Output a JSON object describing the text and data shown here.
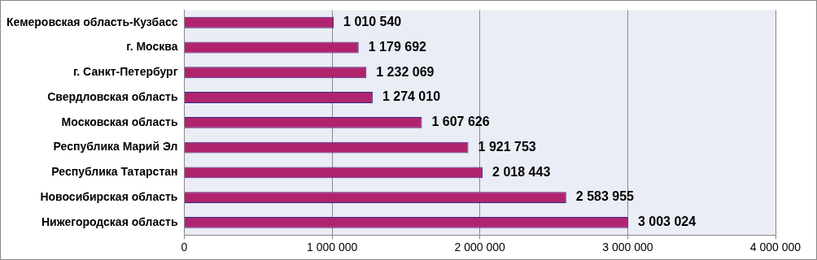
{
  "chart_data": {
    "type": "bar",
    "orientation": "horizontal",
    "categories": [
      "Кемеровская область-Кузбасс",
      "г. Москва",
      "г. Санкт-Петербург",
      "Свердловская область",
      "Московская область",
      "Республика Марий Эл",
      "Республика Татарстан",
      "Новосибирская область",
      "Нижегородская область"
    ],
    "values": [
      1010540,
      1179692,
      1232069,
      1274010,
      1607626,
      1921753,
      2018443,
      2583955,
      3003024
    ],
    "value_labels": [
      "1 010 540",
      "1 179 692",
      "1 232 069",
      "1 274 010",
      "1 607 626",
      "1 921 753",
      "2 018 443",
      "2 583 955",
      "3 003 024"
    ],
    "color": "#b0246e",
    "xlim": [
      0,
      4000000
    ],
    "xticks": [
      0,
      {
        "value": 1000000,
        "label": "1 000 000"
      },
      {
        "value": 2000000,
        "label": "2 000 000"
      },
      {
        "value": 3000000,
        "label": "3 000 000"
      },
      {
        "value": 4000000,
        "label": "4 000 000"
      }
    ],
    "grid": "x",
    "legend": false
  }
}
